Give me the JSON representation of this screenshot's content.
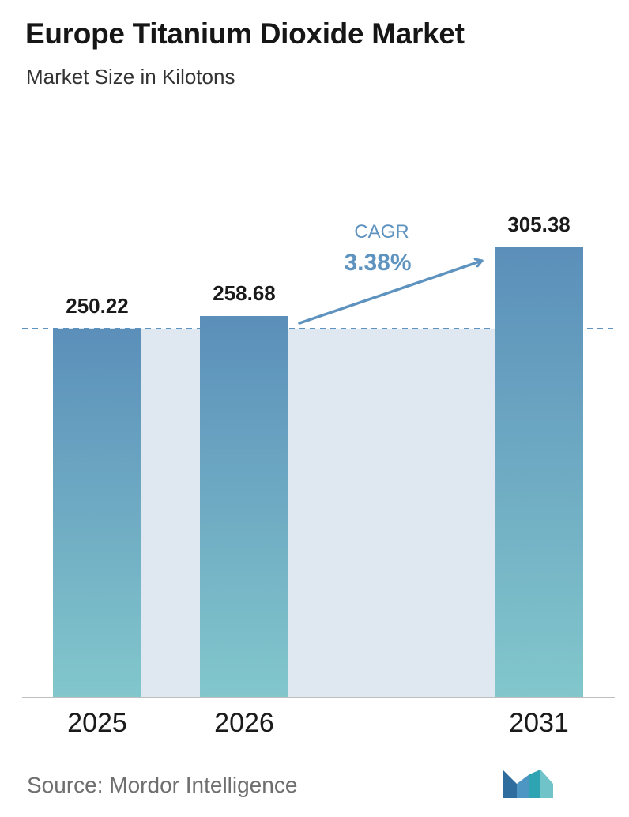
{
  "header": {
    "title": "Europe Titanium Dioxide Market",
    "subtitle": "Market Size in Kilotons"
  },
  "chart_data": {
    "type": "bar",
    "title": "Europe Titanium Dioxide Market",
    "subtitle": "Market Size in Kilotons",
    "categories": [
      "2025",
      "2026",
      "2031"
    ],
    "values": [
      250.22,
      258.68,
      305.38
    ],
    "value_labels": [
      "250.22",
      "258.68",
      "305.38"
    ],
    "ylim": [
      0,
      305.38
    ],
    "grid": false,
    "annotation": {
      "label": "CAGR",
      "value": "3.38%"
    },
    "colors": {
      "bar_top": "#5b8fba",
      "bar_bottom": "#82c7cc",
      "band": "#dfe8f1",
      "arrow": "#5f93bf",
      "reference_line": "#5f93bf",
      "axis": "#bfbfbf"
    }
  },
  "footer": {
    "source": "Source:  Mordor Intelligence",
    "logo_icon": "mordor-intelligence-logo-icon"
  }
}
